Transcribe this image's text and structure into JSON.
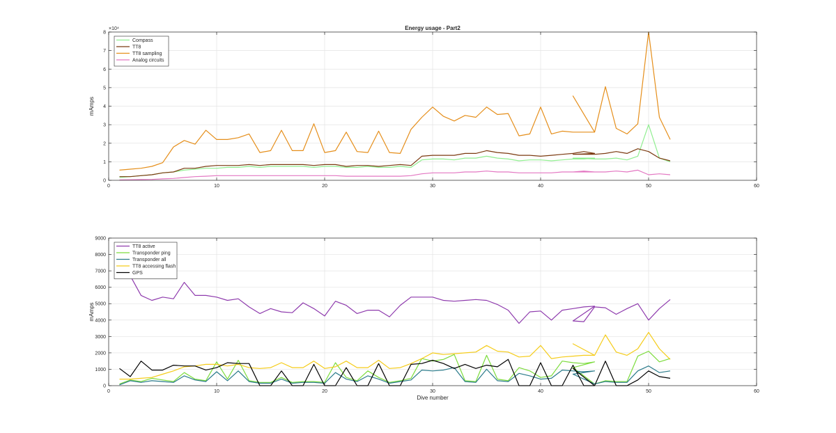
{
  "chart_data": [
    {
      "type": "line",
      "title": "Energy usage - Part2",
      "xlabel": "",
      "ylabel": "mAmps",
      "y_exponent_label": "×10⁴",
      "xlim": [
        0,
        60
      ],
      "ylim": [
        0,
        8
      ],
      "xticks": [
        "0",
        "10",
        "20",
        "30",
        "40",
        "50",
        "60"
      ],
      "yticks": [
        "0",
        "1",
        "2",
        "3",
        "4",
        "5",
        "6",
        "7",
        "8"
      ],
      "grid": true,
      "legend_position": "top-left",
      "series": [
        {
          "name": "Compass",
          "color": "#90ee90",
          "x": [
            1,
            2,
            3,
            4,
            5,
            6,
            7,
            8,
            9,
            10,
            11,
            12,
            13,
            14,
            15,
            16,
            17,
            18,
            19,
            20,
            21,
            22,
            23,
            24,
            25,
            26,
            27,
            28,
            29,
            30,
            31,
            32,
            33,
            34,
            35,
            36,
            37,
            38,
            39,
            40,
            41,
            42,
            43,
            44,
            45,
            43,
            45,
            46,
            47,
            48,
            49,
            50,
            51,
            52
          ],
          "y": [
            0.15,
            0.2,
            0.25,
            0.3,
            0.4,
            0.45,
            0.55,
            0.6,
            0.65,
            0.65,
            0.7,
            0.7,
            0.75,
            0.7,
            0.75,
            0.75,
            0.75,
            0.75,
            0.7,
            0.75,
            0.75,
            0.7,
            0.7,
            0.75,
            0.7,
            0.7,
            0.75,
            0.7,
            1.1,
            1.15,
            1.15,
            1.1,
            1.2,
            1.2,
            1.3,
            1.2,
            1.15,
            1.05,
            1.1,
            1.1,
            1.05,
            1.1,
            1.15,
            1.15,
            1.2,
            1.2,
            1.15,
            1.15,
            1.2,
            1.1,
            1.3,
            3.0,
            1.2,
            1.0
          ]
        },
        {
          "name": "TT8",
          "color": "#7b3a10",
          "x": [
            1,
            2,
            3,
            4,
            5,
            6,
            7,
            8,
            9,
            10,
            11,
            12,
            13,
            14,
            15,
            16,
            17,
            18,
            19,
            20,
            21,
            22,
            23,
            24,
            25,
            26,
            27,
            28,
            29,
            30,
            31,
            32,
            33,
            34,
            35,
            36,
            37,
            38,
            39,
            40,
            41,
            42,
            43,
            44,
            45,
            43,
            45,
            46,
            47,
            48,
            49,
            50,
            51,
            52
          ],
          "y": [
            0.2,
            0.2,
            0.25,
            0.3,
            0.4,
            0.45,
            0.65,
            0.65,
            0.75,
            0.8,
            0.8,
            0.8,
            0.85,
            0.8,
            0.85,
            0.85,
            0.85,
            0.85,
            0.8,
            0.85,
            0.85,
            0.75,
            0.8,
            0.8,
            0.75,
            0.8,
            0.85,
            0.8,
            1.3,
            1.35,
            1.35,
            1.35,
            1.45,
            1.45,
            1.6,
            1.5,
            1.45,
            1.35,
            1.35,
            1.3,
            1.35,
            1.4,
            1.45,
            1.55,
            1.45,
            1.4,
            1.4,
            1.45,
            1.55,
            1.45,
            1.7,
            1.55,
            1.2,
            1.05
          ]
        },
        {
          "name": "TT8 sampling",
          "color": "#e58e1a",
          "x": [
            1,
            2,
            3,
            4,
            5,
            6,
            7,
            8,
            9,
            10,
            11,
            12,
            13,
            14,
            15,
            16,
            17,
            18,
            19,
            20,
            21,
            22,
            23,
            24,
            25,
            26,
            27,
            28,
            29,
            30,
            31,
            32,
            33,
            34,
            35,
            36,
            37,
            38,
            39,
            40,
            41,
            42,
            43,
            44,
            45,
            43,
            45,
            46,
            47,
            48,
            49,
            50,
            51,
            52
          ],
          "y": [
            0.55,
            0.6,
            0.65,
            0.75,
            0.95,
            1.8,
            2.15,
            1.95,
            2.7,
            2.2,
            2.2,
            2.3,
            2.5,
            1.5,
            1.6,
            2.7,
            1.6,
            1.6,
            3.05,
            1.5,
            1.6,
            2.6,
            1.55,
            1.5,
            2.65,
            1.5,
            1.45,
            2.75,
            3.4,
            3.95,
            3.45,
            3.2,
            3.5,
            3.4,
            3.95,
            3.55,
            3.6,
            2.4,
            2.5,
            3.95,
            2.5,
            2.65,
            2.6,
            2.6,
            2.6,
            4.55,
            2.6,
            5.05,
            2.8,
            2.5,
            3.05,
            8.0,
            3.4,
            2.2
          ]
        },
        {
          "name": "Analog circuits",
          "color": "#e377c2",
          "x": [
            1,
            2,
            3,
            4,
            5,
            6,
            7,
            8,
            9,
            10,
            11,
            12,
            13,
            14,
            15,
            16,
            17,
            18,
            19,
            20,
            21,
            22,
            23,
            24,
            25,
            26,
            27,
            28,
            29,
            30,
            31,
            32,
            33,
            34,
            35,
            36,
            37,
            38,
            39,
            40,
            41,
            42,
            43,
            44,
            45,
            43,
            45,
            46,
            47,
            48,
            49,
            50,
            51,
            52
          ],
          "y": [
            0.02,
            0.03,
            0.04,
            0.05,
            0.08,
            0.1,
            0.15,
            0.2,
            0.22,
            0.25,
            0.25,
            0.25,
            0.25,
            0.25,
            0.25,
            0.25,
            0.25,
            0.25,
            0.25,
            0.25,
            0.25,
            0.22,
            0.22,
            0.22,
            0.22,
            0.22,
            0.22,
            0.25,
            0.35,
            0.4,
            0.4,
            0.4,
            0.45,
            0.45,
            0.5,
            0.45,
            0.45,
            0.4,
            0.4,
            0.4,
            0.4,
            0.45,
            0.45,
            0.5,
            0.45,
            0.45,
            0.45,
            0.45,
            0.5,
            0.45,
            0.55,
            0.3,
            0.35,
            0.3
          ]
        }
      ]
    },
    {
      "type": "line",
      "title": "",
      "xlabel": "Dive number",
      "ylabel": "mAmps",
      "xlim": [
        0,
        60
      ],
      "ylim": [
        0,
        9000
      ],
      "xticks": [
        "0",
        "10",
        "20",
        "30",
        "40",
        "50",
        "60"
      ],
      "yticks": [
        "0",
        "1000",
        "2000",
        "3000",
        "4000",
        "5000",
        "6000",
        "7000",
        "8000",
        "9000"
      ],
      "grid": true,
      "legend_position": "top-left",
      "series": [
        {
          "name": "TT8 active",
          "color": "#8e3aad",
          "x": [
            1,
            2,
            3,
            4,
            5,
            6,
            7,
            8,
            9,
            10,
            11,
            12,
            13,
            14,
            15,
            16,
            17,
            18,
            19,
            20,
            21,
            22,
            23,
            24,
            25,
            26,
            27,
            28,
            29,
            30,
            31,
            32,
            33,
            34,
            35,
            36,
            37,
            38,
            39,
            40,
            41,
            42,
            43,
            44,
            45,
            43,
            44,
            45,
            46,
            47,
            48,
            49,
            50,
            51,
            52
          ],
          "y": [
            7300,
            6700,
            5500,
            5200,
            5400,
            5300,
            6300,
            5500,
            5500,
            5400,
            5200,
            5300,
            4800,
            4400,
            4700,
            4500,
            4450,
            5050,
            4700,
            4250,
            5150,
            4900,
            4400,
            4600,
            4600,
            4200,
            4900,
            5400,
            5400,
            5400,
            5200,
            5150,
            5200,
            5250,
            5200,
            4950,
            4600,
            3800,
            4500,
            4550,
            4000,
            4600,
            4700,
            4800,
            4850,
            3950,
            3900,
            4800,
            4750,
            4350,
            4700,
            5000,
            4000,
            4700,
            5250
          ]
        },
        {
          "name": "Transponder ping",
          "color": "#7cdc3c",
          "x": [
            1,
            2,
            3,
            4,
            5,
            6,
            7,
            8,
            9,
            10,
            11,
            12,
            13,
            14,
            15,
            16,
            17,
            18,
            19,
            20,
            21,
            22,
            23,
            24,
            25,
            26,
            27,
            28,
            29,
            30,
            31,
            32,
            33,
            34,
            35,
            36,
            37,
            38,
            39,
            40,
            41,
            42,
            43,
            44,
            45,
            43,
            45,
            46,
            47,
            48,
            49,
            50,
            51,
            52
          ],
          "y": [
            100,
            350,
            250,
            450,
            350,
            250,
            800,
            400,
            300,
            1450,
            400,
            1550,
            300,
            200,
            200,
            500,
            200,
            250,
            250,
            200,
            1400,
            500,
            300,
            900,
            500,
            200,
            300,
            450,
            1650,
            1500,
            1600,
            1900,
            300,
            250,
            1850,
            400,
            300,
            1100,
            900,
            500,
            600,
            1500,
            1400,
            1350,
            1450,
            1100,
            100,
            300,
            250,
            250,
            1800,
            2100,
            1450,
            1650
          ]
        },
        {
          "name": "Transponder all",
          "color": "#2a7a8a",
          "x": [
            1,
            2,
            3,
            4,
            5,
            6,
            7,
            8,
            9,
            10,
            11,
            12,
            13,
            14,
            15,
            16,
            17,
            18,
            19,
            20,
            21,
            22,
            23,
            24,
            25,
            26,
            27,
            28,
            29,
            30,
            31,
            32,
            33,
            34,
            35,
            36,
            37,
            38,
            39,
            40,
            41,
            42,
            43,
            44,
            45,
            43,
            45,
            46,
            47,
            48,
            49,
            50,
            51,
            52
          ],
          "y": [
            50,
            300,
            200,
            300,
            250,
            200,
            600,
            350,
            250,
            850,
            300,
            900,
            250,
            150,
            150,
            400,
            150,
            200,
            200,
            150,
            800,
            400,
            250,
            600,
            400,
            150,
            250,
            350,
            950,
            900,
            950,
            1100,
            250,
            200,
            1000,
            300,
            250,
            750,
            600,
            400,
            450,
            950,
            900,
            850,
            900,
            700,
            100,
            250,
            200,
            200,
            900,
            1200,
            800,
            900
          ]
        },
        {
          "name": "TT8 accessing flash",
          "color": "#f5cc1a",
          "x": [
            1,
            2,
            3,
            4,
            5,
            6,
            7,
            8,
            9,
            10,
            11,
            12,
            13,
            14,
            15,
            16,
            17,
            18,
            19,
            20,
            21,
            22,
            23,
            24,
            25,
            26,
            27,
            28,
            29,
            30,
            31,
            32,
            33,
            34,
            35,
            36,
            37,
            38,
            39,
            40,
            41,
            42,
            43,
            44,
            45,
            43,
            45,
            46,
            47,
            48,
            49,
            50,
            51,
            52
          ],
          "y": [
            400,
            400,
            450,
            500,
            700,
            900,
            1150,
            1200,
            1300,
            1300,
            1200,
            1300,
            1100,
            1050,
            1100,
            1400,
            1100,
            1100,
            1500,
            1050,
            1150,
            1500,
            1100,
            1100,
            1550,
            1050,
            1100,
            1350,
            1650,
            2000,
            1900,
            1950,
            2000,
            2050,
            2450,
            2100,
            2050,
            1750,
            1800,
            2450,
            1650,
            1750,
            1800,
            1850,
            1850,
            2550,
            1850,
            3100,
            2050,
            1850,
            2250,
            3250,
            2250,
            1600
          ]
        },
        {
          "name": "GPS",
          "color": "#000000",
          "x": [
            1,
            2,
            3,
            4,
            5,
            6,
            7,
            8,
            9,
            10,
            11,
            12,
            13,
            14,
            15,
            16,
            17,
            18,
            19,
            20,
            21,
            22,
            23,
            24,
            25,
            26,
            27,
            28,
            29,
            30,
            31,
            32,
            33,
            34,
            35,
            36,
            37,
            38,
            39,
            40,
            41,
            42,
            43,
            44,
            45,
            43,
            45,
            46,
            47,
            48,
            49,
            50,
            51,
            52
          ],
          "y": [
            1050,
            550,
            1500,
            950,
            950,
            1250,
            1200,
            1200,
            950,
            1100,
            1400,
            1350,
            1350,
            0,
            0,
            900,
            0,
            0,
            1300,
            0,
            0,
            1100,
            0,
            0,
            1350,
            0,
            0,
            1300,
            1350,
            1550,
            1350,
            1050,
            1300,
            1050,
            1250,
            1150,
            1600,
            0,
            0,
            1400,
            0,
            0,
            1250,
            0,
            0,
            1050,
            0,
            1500,
            0,
            0,
            350,
            900,
            550,
            450
          ]
        }
      ]
    }
  ]
}
